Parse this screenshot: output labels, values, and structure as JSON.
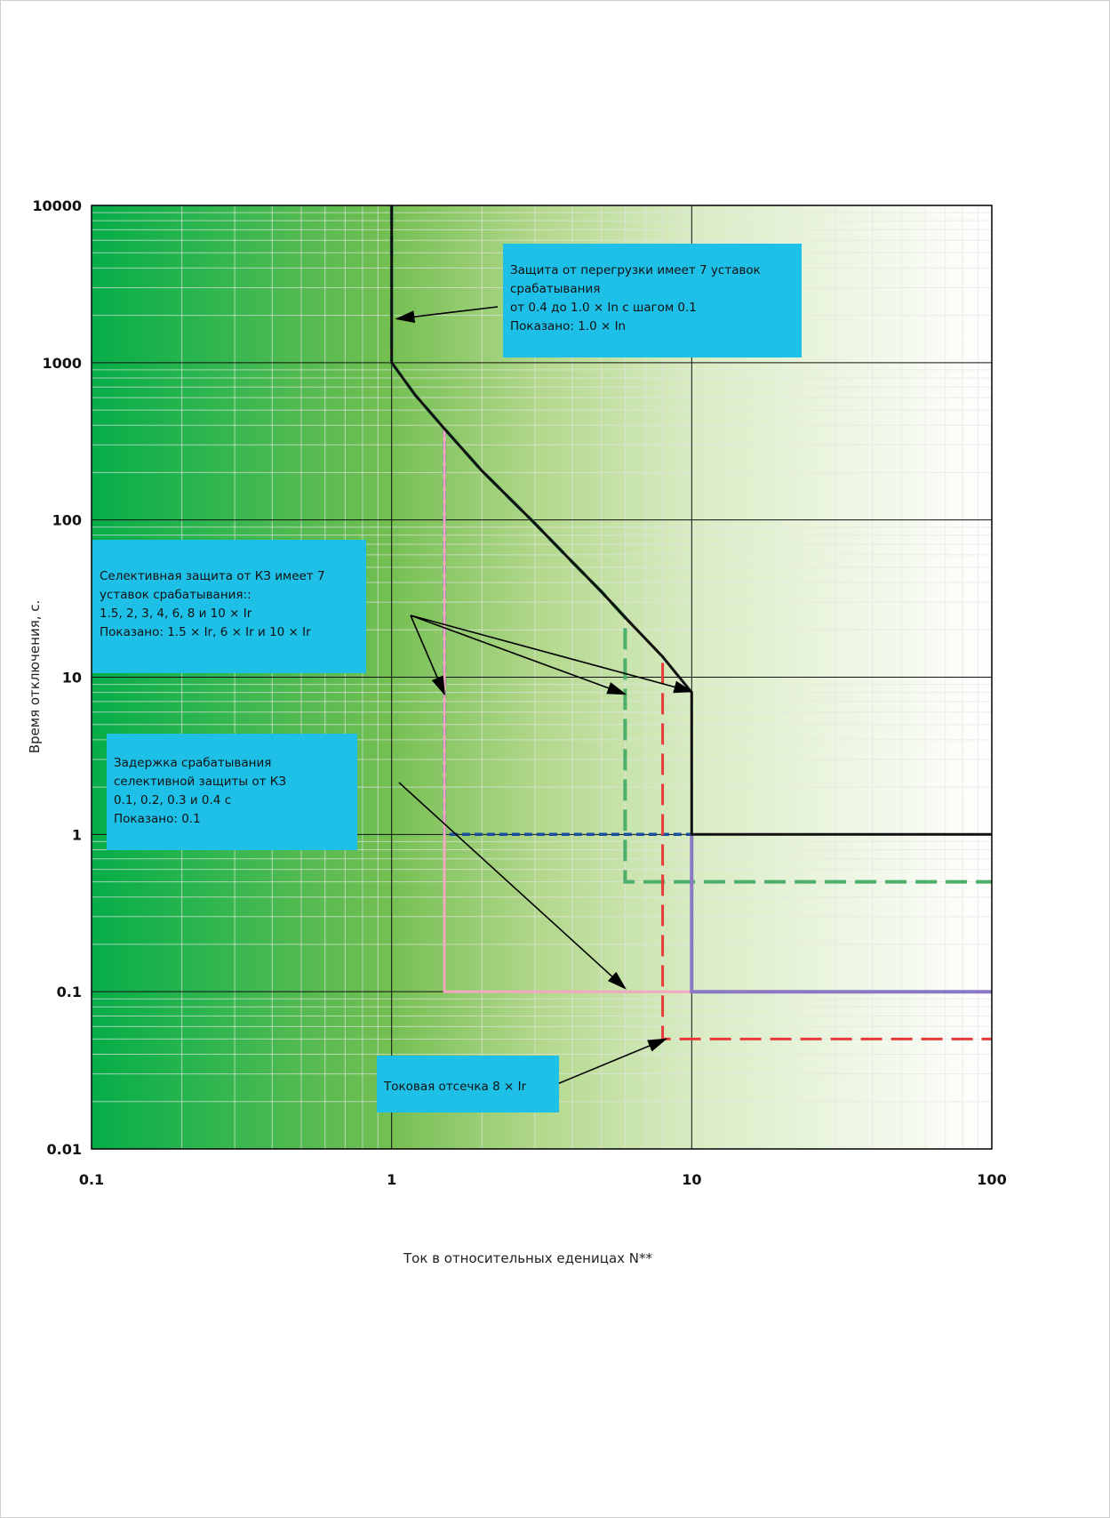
{
  "chart_data": {
    "type": "line",
    "x_scale": "log",
    "y_scale": "log",
    "xlim": [
      0.1,
      100
    ],
    "ylim": [
      0.01,
      10000
    ],
    "xlabel": "Ток в относительных еденицах N**",
    "ylabel": "Время отключения, с.",
    "x_ticks": [
      "0.1",
      "1",
      "10",
      "100"
    ],
    "y_ticks": [
      "0.01",
      "0.1",
      "1",
      "10",
      "100",
      "1000",
      "10000"
    ],
    "grid": true,
    "background": "green gradient fading to white",
    "series": [
      {
        "color": "#111111",
        "style": "solid",
        "points": [
          [
            1,
            10000
          ],
          [
            1,
            1000
          ],
          [
            1.2,
            620
          ],
          [
            1.5,
            380
          ],
          [
            2,
            205
          ],
          [
            3,
            95
          ],
          [
            4,
            54
          ],
          [
            5,
            35
          ],
          [
            6,
            24
          ],
          [
            8,
            13.5
          ],
          [
            10,
            8
          ],
          [
            10,
            1
          ],
          [
            100,
            1
          ]
        ]
      },
      {
        "color": "#4caf6a",
        "style": "dashed",
        "points": [
          [
            1,
            10000
          ],
          [
            1,
            1000
          ],
          [
            1.2,
            620
          ],
          [
            1.5,
            380
          ],
          [
            2,
            205
          ],
          [
            3,
            95
          ],
          [
            4,
            54
          ],
          [
            5,
            35
          ],
          [
            6,
            24
          ],
          [
            6,
            0.5
          ],
          [
            100,
            0.5
          ]
        ]
      },
      {
        "color": "#e83a3a",
        "style": "dashed",
        "points": [
          [
            6,
            24
          ],
          [
            8,
            13.5
          ],
          [
            8,
            0.05
          ],
          [
            100,
            0.05
          ]
        ]
      },
      {
        "color": "#1a4fa0",
        "style": "dashed",
        "points": [
          [
            1.5,
            380
          ],
          [
            1.5,
            1
          ],
          [
            10,
            1
          ]
        ]
      },
      {
        "color": "#f3a7c0",
        "style": "solid",
        "points": [
          [
            1.5,
            380
          ],
          [
            1.5,
            0.1
          ],
          [
            10,
            0.1
          ],
          [
            20,
            0.1
          ]
        ]
      },
      {
        "color": "#8a78c4",
        "style": "solid",
        "points": [
          [
            10,
            1
          ],
          [
            10,
            0.1
          ],
          [
            100,
            0.1
          ]
        ]
      }
    ]
  },
  "annotations": {
    "overload": {
      "lines": [
        "Защита от перегрузки имеет 7 уставок",
        "срабатывания",
        "от 0.4 до 1.0 × In с шагом 0.1",
        "Показано: 1.0 × In"
      ]
    },
    "short_circuit": {
      "lines": [
        "Селективная защита от КЗ имеет 7",
        "уставок срабатывания::",
        "1.5, 2, 3, 4, 6, 8 и 10 × Ir",
        "Показано: 1.5 × Ir, 6 × Ir и 10 × Ir"
      ]
    },
    "delay": {
      "lines": [
        "Задержка срабатывания",
        "селективной защиты от КЗ",
        "0.1, 0.2, 0.3 и 0.4 с",
        "Показано: 0.1"
      ]
    },
    "instant": {
      "lines": [
        "Токовая отсечка 8 × Ir"
      ]
    }
  },
  "colors": {
    "annotation_bg": "#1ec0e8",
    "gradient_start": "#08b04a",
    "gradient_end": "#ffffff"
  }
}
